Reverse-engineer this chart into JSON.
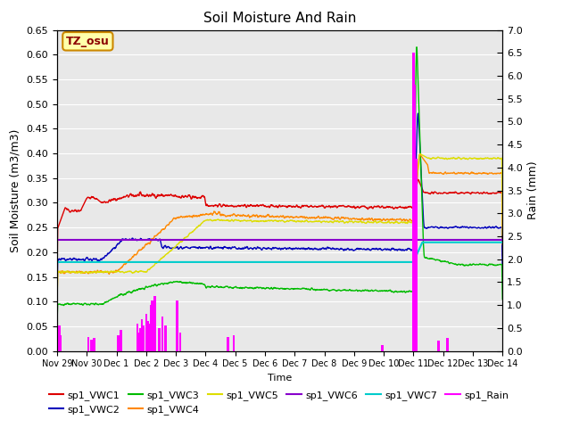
{
  "title": "Soil Moisture And Rain",
  "xlabel": "Time",
  "ylabel_left": "Soil Moisture (m3/m3)",
  "ylabel_right": "Rain (mm)",
  "ylim_left": [
    0.0,
    0.65
  ],
  "ylim_right": [
    0.0,
    7.0
  ],
  "annotation_text": "TZ_osu",
  "background_color": "#e8e8e8",
  "xtick_labels": [
    "Nov 29",
    "Nov 30",
    "Dec 1",
    "Dec 2",
    "Dec 3",
    "Dec 4",
    "Dec 5",
    "Dec 6",
    "Dec 7",
    "Dec 8",
    "Dec 9",
    "Dec 10",
    "Dec 11",
    "Dec 12",
    "Dec 13",
    "Dec 14"
  ],
  "n_points": 1500,
  "rain_times": [
    0.05,
    0.08,
    0.12,
    1.05,
    1.15,
    1.25,
    2.05,
    2.15,
    2.7,
    2.75,
    2.8,
    2.85,
    2.9,
    3.0,
    3.05,
    3.1,
    3.15,
    3.2,
    3.25,
    3.3,
    3.45,
    3.55,
    3.65,
    4.05,
    4.15,
    5.75,
    5.95,
    10.95,
    12.0,
    12.05,
    12.1,
    12.85,
    13.15
  ],
  "rain_vals": [
    0.45,
    0.55,
    0.35,
    0.3,
    0.25,
    0.28,
    0.35,
    0.45,
    0.6,
    0.4,
    0.5,
    0.7,
    0.55,
    0.8,
    0.65,
    0.6,
    1.0,
    1.1,
    0.9,
    1.2,
    0.5,
    0.75,
    0.55,
    1.1,
    0.4,
    0.3,
    0.35,
    0.12,
    6.5,
    5.8,
    4.2,
    0.22,
    0.28
  ]
}
